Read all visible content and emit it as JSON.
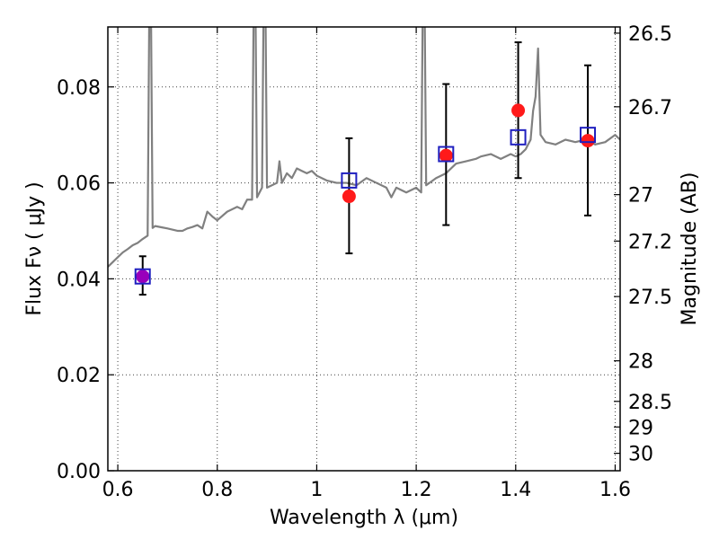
{
  "chart_data": {
    "type": "scatter",
    "title": "",
    "xlabel": "Wavelength  λ (μm)",
    "ylabel": "Flux  Fν  ( μJy )",
    "y2label": "Magnitude (AB)",
    "xlim": [
      0.58,
      1.61
    ],
    "ylim": [
      0.0,
      0.0925
    ],
    "grid": true,
    "x_ticks": [
      0.6,
      0.8,
      1.0,
      1.2,
      1.4,
      1.6
    ],
    "x_tick_labels": [
      "0.6",
      "0.8",
      "1",
      "1.2",
      "1.4",
      "1.6"
    ],
    "y_ticks": [
      0.0,
      0.02,
      0.04,
      0.06,
      0.08
    ],
    "y_tick_labels": [
      "0.00",
      "0.02",
      "0.04",
      "0.06",
      "0.08"
    ],
    "y2_ticks": [
      26.5,
      26.7,
      27.0,
      27.2,
      27.5,
      28.0,
      28.5,
      29.0,
      30.0
    ],
    "y2_tick_labels": [
      "26.5",
      "26.7",
      "27",
      "27.2",
      "27.5",
      "28",
      "28.5",
      "29",
      "30"
    ],
    "model_spectrum": {
      "color": "#808080",
      "points": [
        [
          0.58,
          0.0425
        ],
        [
          0.6,
          0.0445
        ],
        [
          0.61,
          0.0455
        ],
        [
          0.62,
          0.0462
        ],
        [
          0.63,
          0.047
        ],
        [
          0.64,
          0.0475
        ],
        [
          0.65,
          0.0483
        ],
        [
          0.66,
          0.049
        ],
        [
          0.665,
          0.12
        ],
        [
          0.67,
          0.0506
        ],
        [
          0.675,
          0.051
        ],
        [
          0.69,
          0.0507
        ],
        [
          0.7,
          0.0505
        ],
        [
          0.72,
          0.05
        ],
        [
          0.73,
          0.05
        ],
        [
          0.74,
          0.0505
        ],
        [
          0.75,
          0.0508
        ],
        [
          0.76,
          0.0512
        ],
        [
          0.77,
          0.0505
        ],
        [
          0.78,
          0.054
        ],
        [
          0.79,
          0.053
        ],
        [
          0.8,
          0.0522
        ],
        [
          0.82,
          0.054
        ],
        [
          0.84,
          0.055
        ],
        [
          0.85,
          0.0545
        ],
        [
          0.86,
          0.0565
        ],
        [
          0.87,
          0.0565
        ],
        [
          0.875,
          0.12
        ],
        [
          0.88,
          0.057
        ],
        [
          0.89,
          0.059
        ],
        [
          0.895,
          0.12
        ],
        [
          0.9,
          0.059
        ],
        [
          0.92,
          0.06
        ],
        [
          0.925,
          0.0645
        ],
        [
          0.93,
          0.06
        ],
        [
          0.94,
          0.062
        ],
        [
          0.95,
          0.061
        ],
        [
          0.96,
          0.063
        ],
        [
          0.97,
          0.0625
        ],
        [
          0.98,
          0.062
        ],
        [
          0.99,
          0.0625
        ],
        [
          1.0,
          0.0615
        ],
        [
          1.02,
          0.0605
        ],
        [
          1.04,
          0.06
        ],
        [
          1.06,
          0.06
        ],
        [
          1.08,
          0.0595
        ],
        [
          1.1,
          0.061
        ],
        [
          1.12,
          0.06
        ],
        [
          1.14,
          0.059
        ],
        [
          1.15,
          0.057
        ],
        [
          1.16,
          0.059
        ],
        [
          1.18,
          0.058
        ],
        [
          1.2,
          0.059
        ],
        [
          1.21,
          0.058
        ],
        [
          1.215,
          0.12
        ],
        [
          1.22,
          0.0595
        ],
        [
          1.24,
          0.061
        ],
        [
          1.26,
          0.062
        ],
        [
          1.28,
          0.064
        ],
        [
          1.3,
          0.0645
        ],
        [
          1.32,
          0.065
        ],
        [
          1.33,
          0.0655
        ],
        [
          1.35,
          0.066
        ],
        [
          1.37,
          0.065
        ],
        [
          1.39,
          0.066
        ],
        [
          1.4,
          0.0655
        ],
        [
          1.41,
          0.066
        ],
        [
          1.42,
          0.067
        ],
        [
          1.43,
          0.069
        ],
        [
          1.435,
          0.075
        ],
        [
          1.44,
          0.078
        ],
        [
          1.445,
          0.088
        ],
        [
          1.45,
          0.07
        ],
        [
          1.46,
          0.0685
        ],
        [
          1.48,
          0.068
        ],
        [
          1.5,
          0.069
        ],
        [
          1.52,
          0.0685
        ],
        [
          1.54,
          0.069
        ],
        [
          1.56,
          0.068
        ],
        [
          1.58,
          0.0685
        ],
        [
          1.6,
          0.07
        ],
        [
          1.61,
          0.069
        ]
      ]
    },
    "model_photometry": {
      "color": "#1f1fbf",
      "points": [
        [
          0.65,
          0.0405
        ],
        [
          1.065,
          0.0605
        ],
        [
          1.26,
          0.066
        ],
        [
          1.405,
          0.0695
        ],
        [
          1.545,
          0.07
        ]
      ]
    },
    "observed_points": {
      "color": "#ff1a1a",
      "purple_color": "#9900bb",
      "points": [
        [
          0.65,
          0.0405,
          0.0367,
          0.0447,
          "purple"
        ],
        [
          1.065,
          0.0572,
          0.0453,
          0.0693,
          "red"
        ],
        [
          1.26,
          0.0657,
          0.0512,
          0.0806,
          "red"
        ],
        [
          1.405,
          0.0751,
          0.061,
          0.0893,
          "red"
        ],
        [
          1.545,
          0.0688,
          0.0532,
          0.0845,
          "red"
        ]
      ]
    }
  }
}
